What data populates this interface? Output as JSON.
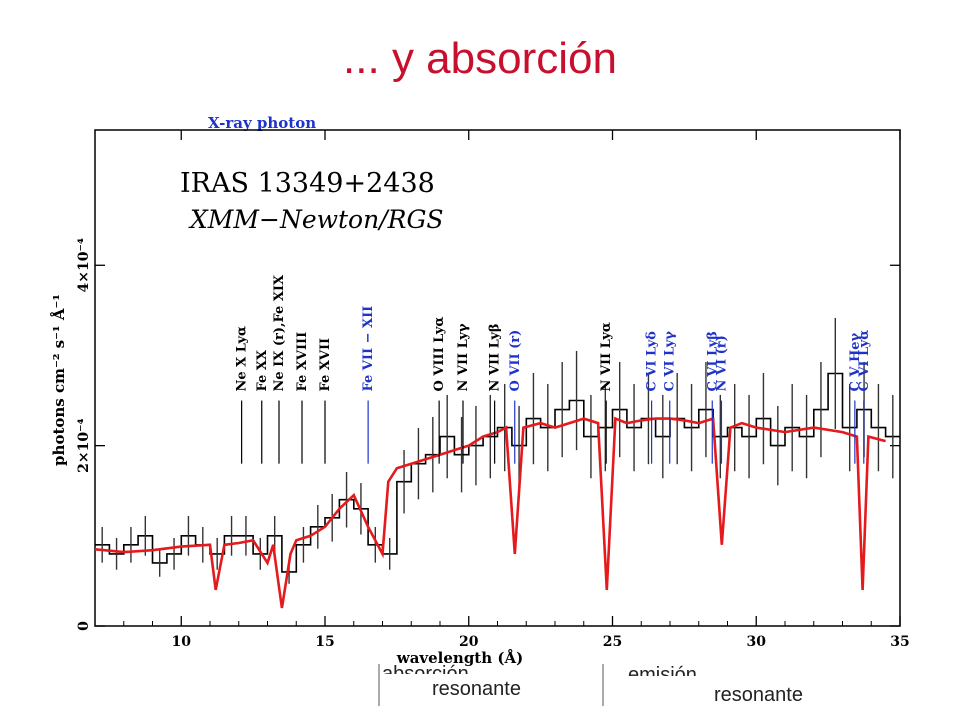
{
  "slide": {
    "title": "... y absorción",
    "bottom_left_word": "absorción",
    "bottom_left_label": "resonante",
    "bottom_right_word": "emisión",
    "bottom_right_label": "resonante"
  },
  "colors": {
    "title": "#c8102e",
    "model": "#e41a1c",
    "data": "#000000",
    "blue_labels": "#1f33c9"
  },
  "chart_data": {
    "type": "line",
    "header_text": "X-ray photon",
    "title": "IRAS  13349+2438",
    "subtitle": "XMM−Newton/RGS",
    "xlabel": "wavelength (Å)",
    "ylabel": "photons cm⁻² s⁻¹ Å⁻¹",
    "xlim": [
      7,
      35
    ],
    "ylim": [
      0,
      0.00055
    ],
    "xticks": [
      10,
      15,
      20,
      25,
      30,
      35
    ],
    "yticks": [
      {
        "value": 0,
        "label": "0"
      },
      {
        "value": 0.0002,
        "label": "2×10⁻⁴"
      },
      {
        "value": 0.0004,
        "label": "4×10⁻⁴"
      }
    ],
    "grid": false,
    "series": [
      {
        "style": "data-histogram",
        "x": [
          7.0,
          7.5,
          8.0,
          8.5,
          9.0,
          9.5,
          10.0,
          10.5,
          11.0,
          11.5,
          12.0,
          12.5,
          13.0,
          13.5,
          14.0,
          14.5,
          15.0,
          15.5,
          16.0,
          16.5,
          17.0,
          17.5,
          18.0,
          18.5,
          19.0,
          19.5,
          20.0,
          20.5,
          21.0,
          21.5,
          22.0,
          22.5,
          23.0,
          23.5,
          24.0,
          24.5,
          25.0,
          25.5,
          26.0,
          26.5,
          27.0,
          27.5,
          28.0,
          28.5,
          29.0,
          29.5,
          30.0,
          30.5,
          31.0,
          31.5,
          32.0,
          32.5,
          33.0,
          33.5,
          34.0,
          34.5
        ],
        "y": [
          9e-05,
          8e-05,
          9e-05,
          0.0001,
          7e-05,
          8e-05,
          0.0001,
          9e-05,
          8e-05,
          0.0001,
          0.0001,
          8e-05,
          0.0001,
          6e-05,
          9e-05,
          0.00011,
          0.00012,
          0.00014,
          0.00013,
          9e-05,
          8e-05,
          0.00016,
          0.00018,
          0.00019,
          0.00021,
          0.00019,
          0.0002,
          0.00021,
          0.00022,
          0.0002,
          0.00023,
          0.00022,
          0.00024,
          0.00025,
          0.00021,
          0.00022,
          0.00024,
          0.00022,
          0.00023,
          0.00021,
          0.00023,
          0.00022,
          0.00024,
          0.00021,
          0.00022,
          0.00021,
          0.00023,
          0.0002,
          0.00022,
          0.00021,
          0.00024,
          0.00028,
          0.00022,
          0.00024,
          0.00022,
          0.00021
        ]
      },
      {
        "style": "model",
        "x": [
          7.0,
          8.0,
          9.0,
          10.0,
          11.0,
          11.2,
          11.5,
          12.0,
          12.5,
          13.0,
          13.2,
          13.5,
          13.8,
          14.0,
          14.5,
          15.0,
          15.5,
          16.0,
          16.5,
          17.0,
          17.2,
          17.5,
          18.0,
          18.5,
          19.0,
          19.5,
          20.0,
          20.5,
          21.0,
          21.3,
          21.6,
          21.9,
          22.5,
          23.0,
          23.5,
          24.0,
          24.5,
          24.8,
          25.1,
          25.5,
          26.0,
          26.5,
          27.0,
          27.5,
          28.0,
          28.5,
          28.8,
          29.1,
          29.5,
          30.0,
          31.0,
          32.0,
          33.0,
          33.5,
          33.7,
          33.9,
          34.5
        ],
        "y": [
          8.5e-05,
          8.2e-05,
          8.4e-05,
          8.8e-05,
          9e-05,
          4e-05,
          9e-05,
          9.2e-05,
          9.5e-05,
          7e-05,
          9e-05,
          2e-05,
          8e-05,
          9.5e-05,
          0.0001,
          0.00011,
          0.00013,
          0.000145,
          0.00011,
          8e-05,
          0.00016,
          0.000175,
          0.00018,
          0.000185,
          0.00019,
          0.000195,
          0.0002,
          0.00021,
          0.000215,
          0.00022,
          8e-05,
          0.00022,
          0.000225,
          0.00022,
          0.000225,
          0.00023,
          0.000225,
          4e-05,
          0.00023,
          0.000225,
          0.000228,
          0.00023,
          0.00023,
          0.000228,
          0.000225,
          0.00023,
          9e-05,
          0.00022,
          0.000225,
          0.00022,
          0.000215,
          0.00022,
          0.000215,
          0.00021,
          4e-05,
          0.00021,
          0.000205
        ]
      }
    ],
    "line_labels": [
      {
        "text": "Ne X Lyα",
        "x": 12.1,
        "color": "black"
      },
      {
        "text": "Fe XX",
        "x": 12.8,
        "color": "black"
      },
      {
        "text": "Ne IX (r),Fe XIX",
        "x": 13.4,
        "color": "black"
      },
      {
        "text": "Fe XVIII",
        "x": 14.2,
        "color": "black"
      },
      {
        "text": "Fe XVII",
        "x": 15.0,
        "color": "black"
      },
      {
        "text": "Fe VII − XII",
        "x": 16.5,
        "color": "blue"
      },
      {
        "text": "O VIII Lyα",
        "x": 18.97,
        "color": "black"
      },
      {
        "text": "N VII Lyγ",
        "x": 19.8,
        "color": "black"
      },
      {
        "text": "N VII Lyβ",
        "x": 20.9,
        "color": "black"
      },
      {
        "text": "O VII (r)",
        "x": 21.6,
        "color": "blue"
      },
      {
        "text": "N VII Lyα",
        "x": 24.78,
        "color": "black"
      },
      {
        "text": "C VI Lyδ",
        "x": 26.36,
        "color": "blue"
      },
      {
        "text": "C VI Lyγ",
        "x": 26.99,
        "color": "blue"
      },
      {
        "text": "C VI Lyβ",
        "x": 28.47,
        "color": "blue"
      },
      {
        "text": "N VI (r)",
        "x": 28.79,
        "color": "blue"
      },
      {
        "text": "C V Heγ",
        "x": 33.43,
        "color": "blue"
      },
      {
        "text": "C VI Lyα",
        "x": 33.74,
        "color": "blue"
      }
    ]
  }
}
